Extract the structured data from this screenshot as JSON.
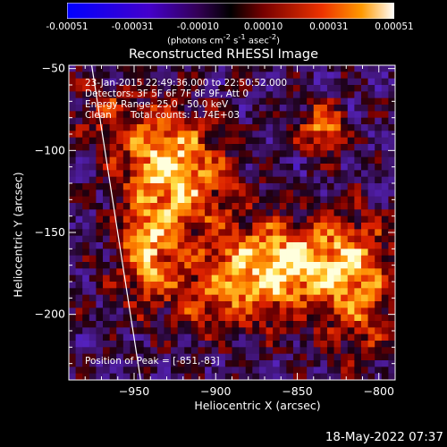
{
  "colorbar": {
    "ticks": [
      "-0.00051",
      "-0.00031",
      "-0.00010",
      "0.00010",
      "0.00031",
      "0.00051"
    ],
    "units_html": "(photons cm<sup>-2</sup> s<sup>-1</sup> asec<sup>-2</sup>)"
  },
  "chart_data": {
    "type": "heatmap",
    "title": "Reconstructed RHESSI Image",
    "xlabel": "Heliocentric X (arcsec)",
    "ylabel": "Heliocentric Y (arcsec)",
    "xlim": [
      -990,
      -790
    ],
    "ylim": [
      -240,
      -48
    ],
    "x_ticks": [
      -950,
      -900,
      -850,
      -800
    ],
    "x_tick_labels": [
      "−950",
      "−900",
      "−850",
      "−800"
    ],
    "y_ticks": [
      -50,
      -100,
      -150,
      -200
    ],
    "y_tick_labels": [
      "−50",
      "−100",
      "−150",
      "−200"
    ],
    "colormap": [
      "#0000ff",
      "#3300cc",
      "#330066",
      "#000000",
      "#660000",
      "#cc2200",
      "#ff8800",
      "#ffffcc"
    ],
    "peak": {
      "x": -851,
      "y": -83
    },
    "limb_line": [
      [
        -976,
        -48
      ],
      [
        -946,
        -240
      ]
    ]
  },
  "annotations": {
    "line1": "23-Jan-2015 22:49:36.000 to 22:50:52.000",
    "line2": "Detectors: 3F 5F 6F 7F 8F 9F, Att 0",
    "line3": "Energy Range: 25.0 - 50.0 keV",
    "line4_a": "Clean",
    "line4_b": "Total counts: 1.74E+03",
    "peak_label": "Position of Peak = [-851,-83]"
  },
  "footer": {
    "timestamp": "18-May-2022 07:37"
  }
}
